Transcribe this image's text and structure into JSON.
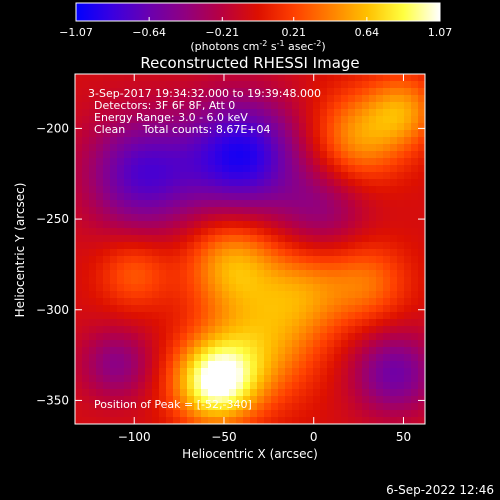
{
  "colorbar": {
    "tick_labels": [
      "-1.07",
      "-0.64",
      "-0.21",
      "0.21",
      "0.64",
      "1.07"
    ],
    "tick_values": [
      -1.07,
      -0.64,
      -0.21,
      0.21,
      0.64,
      1.07
    ],
    "range": [
      -1.07,
      1.07
    ],
    "units_prefix": "(photons cm",
    "units_exp1": "-2",
    "units_mid": " s",
    "units_exp2": "-1",
    "units_mid2": " asec",
    "units_exp3": "-2",
    "units_suffix": ")",
    "colormap": [
      "#0000ff",
      "#3a00e0",
      "#6a00b0",
      "#900080",
      "#b80040",
      "#dd1000",
      "#ff4000",
      "#ff8000",
      "#ffc000",
      "#ffff40",
      "#ffffff"
    ]
  },
  "chart_data": {
    "type": "heatmap",
    "title": "Reconstructed RHESSI Image",
    "xlabel": "Heliocentric X (arcsec)",
    "ylabel": "Heliocentric Y (arcsec)",
    "xlim": [
      -133,
      62
    ],
    "ylim": [
      -363,
      -170
    ],
    "x_ticks": [
      -100,
      -50,
      0,
      50
    ],
    "x_tick_labels": [
      "−100",
      "−50",
      "0",
      "50"
    ],
    "y_ticks": [
      -200,
      -250,
      -300,
      -350
    ],
    "y_tick_labels": [
      "−200",
      "−250",
      "−300",
      "−350"
    ],
    "annotations": [
      "3-Sep-2017 19:34:32.000 to 19:39:48.000",
      "Detectors: 3F 6F 8F, Att 0",
      "Energy Range: 3.0 - 6.0 keV",
      "Clean     Total counts: 8.67E+04"
    ],
    "peak_label": "Position of Peak = [-52,-340]",
    "peak": [
      -52,
      -340
    ],
    "sources": [
      {
        "x": -55,
        "y": -340,
        "amp": 1.07,
        "sigma": 16
      },
      {
        "x": -30,
        "y": -320,
        "amp": 0.55,
        "sigma": 22
      },
      {
        "x": -45,
        "y": -275,
        "amp": 0.62,
        "sigma": 18
      },
      {
        "x": -5,
        "y": -290,
        "amp": 0.45,
        "sigma": 18
      },
      {
        "x": 30,
        "y": -285,
        "amp": 0.4,
        "sigma": 16
      },
      {
        "x": -100,
        "y": -280,
        "amp": 0.35,
        "sigma": 14
      },
      {
        "x": 25,
        "y": -205,
        "amp": 0.55,
        "sigma": 18
      },
      {
        "x": 50,
        "y": -190,
        "amp": 0.5,
        "sigma": 14
      },
      {
        "x": -95,
        "y": -225,
        "amp": -0.7,
        "sigma": 22
      },
      {
        "x": -40,
        "y": -215,
        "amp": -0.9,
        "sigma": 22
      },
      {
        "x": 5,
        "y": -245,
        "amp": -0.35,
        "sigma": 18
      },
      {
        "x": 45,
        "y": -335,
        "amp": -0.55,
        "sigma": 16
      },
      {
        "x": -110,
        "y": -330,
        "amp": -0.4,
        "sigma": 14
      }
    ],
    "background": -0.05
  },
  "footer": {
    "date": "6-Sep-2022 12:46"
  }
}
